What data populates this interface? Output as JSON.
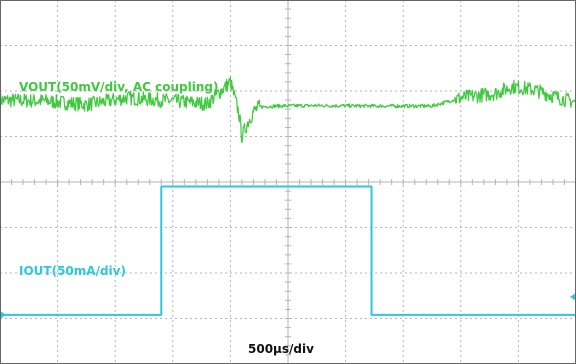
{
  "chart_data": {
    "type": "line",
    "x_unit_label": "500µs/div",
    "divisions": {
      "x": 10,
      "y": 8
    },
    "grid": true,
    "background": "#ffffff",
    "grid_color": "#b5b5b5",
    "series": [
      {
        "name": "VOUT(50mV/div, AC coupling)",
        "color": "#3ec93e",
        "noisy": true,
        "x_div": [
          0,
          0.8,
          1.5,
          2.2,
          3.0,
          3.6,
          4.0,
          4.15,
          4.2,
          4.3,
          4.4,
          4.5,
          4.8,
          5.5,
          6.5,
          7.5,
          8.0,
          8.6,
          8.9,
          9.3,
          9.7,
          10.0
        ],
        "y_div": [
          5.8,
          5.78,
          5.7,
          5.85,
          5.78,
          5.72,
          6.2,
          5.5,
          5.0,
          5.3,
          5.55,
          5.65,
          5.67,
          5.68,
          5.67,
          5.67,
          5.85,
          5.95,
          6.1,
          6.02,
          5.85,
          5.75
        ]
      },
      {
        "name": "IOUT(50mA/div)",
        "color": "#2ec7de",
        "noisy": false,
        "x_div": [
          0,
          2.8,
          2.8,
          6.45,
          6.45,
          10.0
        ],
        "y_div": [
          1.08,
          1.08,
          3.9,
          3.9,
          1.08,
          1.08
        ]
      }
    ]
  }
}
